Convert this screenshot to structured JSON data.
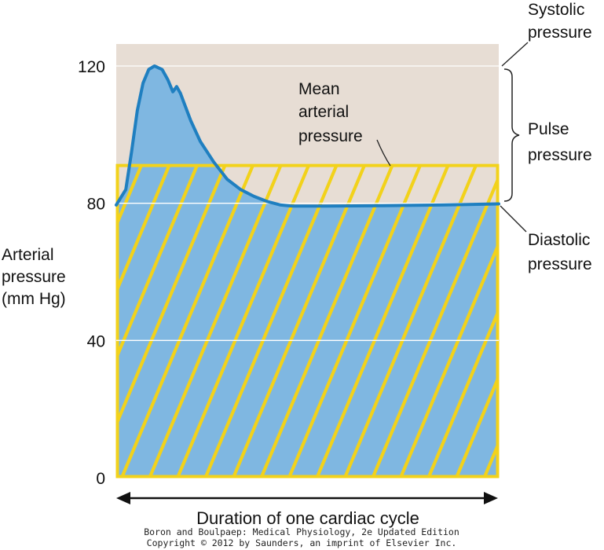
{
  "chart_data": {
    "type": "line",
    "ylabel_lines": [
      "Arterial",
      "pressure",
      "(mm Hg)"
    ],
    "xlabel": "Duration of one cardiac cycle",
    "ylim": [
      0,
      120
    ],
    "yticks": [
      {
        "value": 0,
        "label": "0"
      },
      {
        "value": 40,
        "label": "40"
      },
      {
        "value": 80,
        "label": "80"
      },
      {
        "value": 120,
        "label": "120"
      }
    ],
    "gridlines": [
      40,
      80,
      120
    ],
    "xlim": [
      0,
      1
    ],
    "waveform": {
      "x": [
        0,
        0.025,
        0.04,
        0.055,
        0.07,
        0.085,
        0.1,
        0.12,
        0.135,
        0.148,
        0.158,
        0.168,
        0.178,
        0.195,
        0.22,
        0.255,
        0.29,
        0.325,
        0.36,
        0.395,
        0.43,
        0.46,
        0.55,
        0.7,
        0.85,
        1.0
      ],
      "y": [
        79.5,
        84,
        95,
        107,
        115,
        119,
        120,
        119,
        116,
        112.5,
        114,
        112,
        109,
        104,
        98,
        92,
        87,
        84,
        82,
        80.5,
        79.5,
        79.2,
        79.2,
        79.3,
        79.5,
        79.8
      ]
    },
    "systolic": 120,
    "diastolic": 80,
    "mean": 91,
    "annotations": {
      "systolic": [
        "Systolic",
        "pressure"
      ],
      "pulse": [
        "Pulse",
        "pressure"
      ],
      "diastolic": [
        "Diastolic",
        "pressure"
      ],
      "mean": [
        "Mean",
        "arterial",
        "pressure"
      ]
    },
    "colors": {
      "plot_background": "#e7ddd4",
      "area_fill": "#7fb7e1",
      "curve": "#1f7fc0",
      "mean_hatch": "#f2d21b",
      "gridline": "#ffffff",
      "axis_text": "#111111"
    }
  },
  "credit_lines": [
    "Boron and Boulpaep: Medical Physiology, 2e Updated Edition",
    "Copyright © 2012 by Saunders, an imprint of Elsevier Inc."
  ]
}
